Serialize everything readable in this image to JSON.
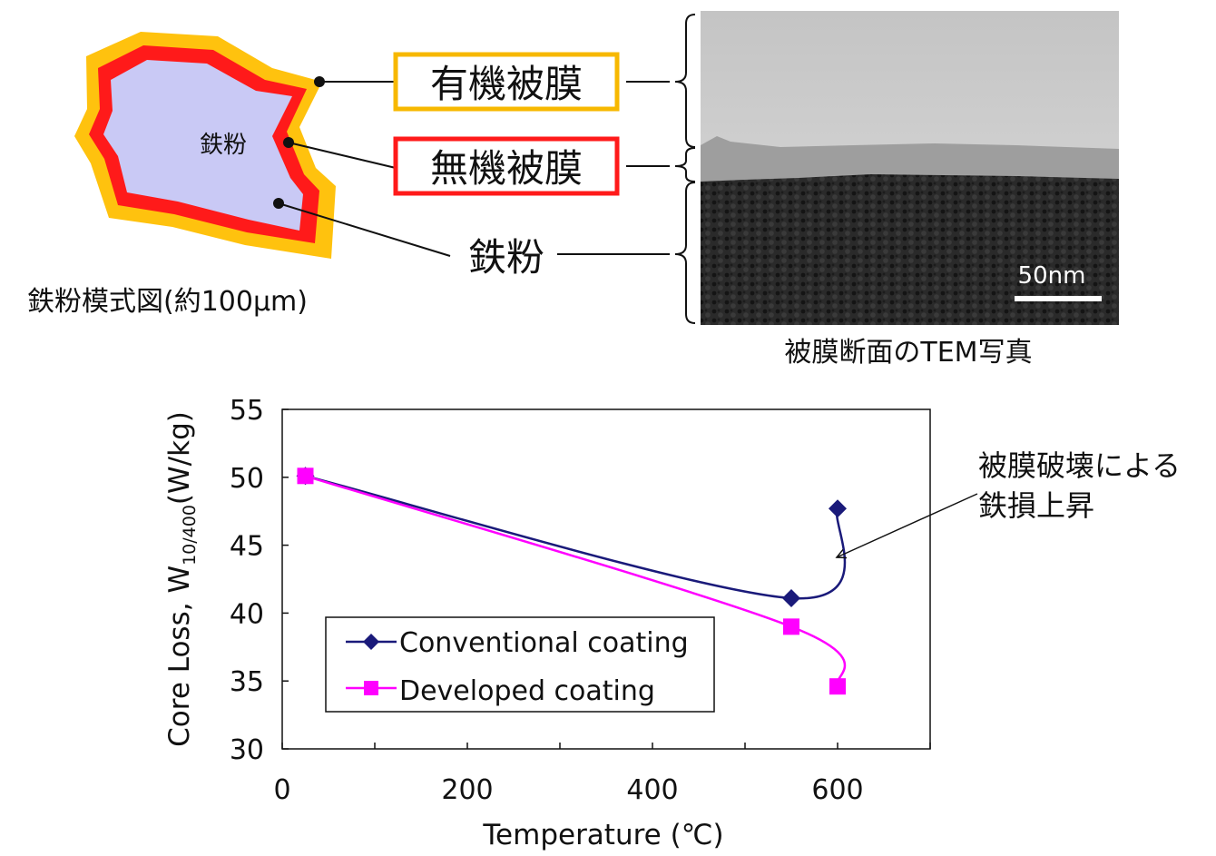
{
  "diagram": {
    "particle_label": "鉄粉",
    "particle_caption": "鉄粉模式図(約100µm)",
    "labels": [
      {
        "text": "有機被膜",
        "border_color": "#f7b800"
      },
      {
        "text": "無機被膜",
        "border_color": "#ff1a1a"
      },
      {
        "text": "鉄粉",
        "border_color": ""
      }
    ],
    "colors": {
      "organic": "#ffc20e",
      "inorganic": "#ff1a1a",
      "iron": "#c9c9f5"
    }
  },
  "tem": {
    "scale_label": "50nm",
    "caption": "被膜断面のTEM写真"
  },
  "annotation": {
    "line1": "被膜破壊による",
    "line2": "鉄損上昇"
  },
  "chart_data": {
    "type": "line",
    "xlabel": "Temperature (℃)",
    "ylabel_main": "Core Loss, W",
    "ylabel_sub": "10/400",
    "ylabel_unit": "(W/kg)",
    "xlim": [
      0,
      700
    ],
    "ylim": [
      30,
      55
    ],
    "x_ticks": [
      0,
      200,
      400,
      600
    ],
    "y_ticks": [
      30,
      35,
      40,
      45,
      50,
      55
    ],
    "grid": false,
    "legend_position": "bottom-left",
    "series": [
      {
        "name": "Conventional coating",
        "color": "#1a1a7a",
        "marker": "diamond",
        "x": [
          25,
          550,
          600
        ],
        "y": [
          50.1,
          41.1,
          47.7
        ]
      },
      {
        "name": "Developed coating",
        "color": "#ff00ff",
        "marker": "square",
        "x": [
          25,
          550,
          600
        ],
        "y": [
          50.1,
          39.0,
          34.6
        ]
      }
    ]
  }
}
